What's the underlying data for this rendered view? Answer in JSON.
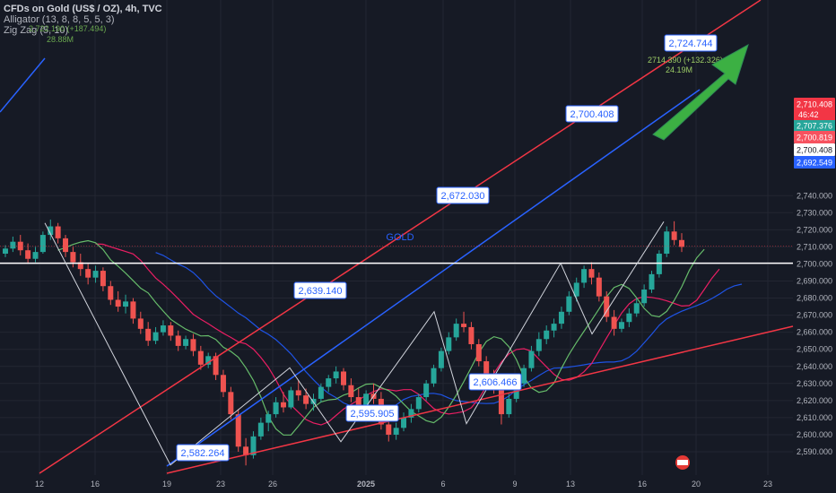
{
  "header": {
    "symbol_line": "CFDs on Gold (US$ / OZ), 4h, TVC",
    "indicator_1": "Alligator (13, 8, 8, 5, 5, 3)",
    "indicator_2": "Zig Zag (5, 10)",
    "faint_label_1": "2,722.190 (+187.494)",
    "faint_label_2": "28.88M"
  },
  "colors": {
    "background": "#161a25",
    "grid": "#232632",
    "up": "#26a69a",
    "down": "#ef5350",
    "channel_red": "#f23645",
    "channel_blue": "#2962ff",
    "zigzag": "#d1d4dc",
    "ma_blue": "#1e53e5",
    "ma_red": "#e91e63",
    "ma_green": "#66bb6a",
    "arrow": "#3cb043",
    "label_border": "#2962ff"
  },
  "chart_data": {
    "type": "candlestick",
    "ylim": [
      2581,
      2744
    ],
    "y_ticks": [
      2590,
      2600,
      2610,
      2620,
      2630,
      2640,
      2650,
      2660,
      2670,
      2680,
      2690,
      2700,
      2710,
      2720,
      2730,
      2740
    ],
    "y_tick_labels": [
      "2,590.000",
      "2,600.000",
      "2,610.000",
      "2,620.000",
      "2,630.000",
      "2,640.000",
      "2,650.000",
      "2,660.000",
      "2,670.000",
      "2,680.000",
      "2,690.000",
      "2,700.000",
      "2,710.000",
      "2,720.000",
      "2,730.000",
      "2,740.000"
    ],
    "x_ticks": [
      "12",
      "16",
      "19",
      "23",
      "26",
      "2025",
      "6",
      "9",
      "13",
      "16",
      "20",
      "23"
    ],
    "zigzag_labels": [
      {
        "label": "2,582.264",
        "value": 2582.264
      },
      {
        "label": "2,639.140",
        "value": 2639.14
      },
      {
        "label": "2,595.905",
        "value": 2595.905
      },
      {
        "label": "2,672.030",
        "value": 2672.03
      },
      {
        "label": "2,606.466",
        "value": 2606.466
      },
      {
        "label": "2,700.408",
        "value": 2700.408
      },
      {
        "label": "2,724.744",
        "value": 2724.744
      }
    ],
    "annotations": {
      "gold_text": "GOLD",
      "last_swing": "2714.390 (+132.326)",
      "last_volume": "24.19M",
      "countdown": "46:42"
    },
    "price_tags": [
      {
        "label": "2,710.408",
        "value": 2710.408,
        "color": "#f23645"
      },
      {
        "label": "2,707.376",
        "value": 2707.376,
        "color": "#26a69a"
      },
      {
        "label": "2,700.819",
        "value": 2700.819,
        "color": "#f7525f"
      },
      {
        "label": "2,700.408",
        "value": 2700.408,
        "color": "#ffffff"
      },
      {
        "label": "2,692.549",
        "value": 2692.549,
        "color": "#2962ff"
      }
    ],
    "horizontal_line": 2700.408,
    "candles": [
      [
        2706,
        2711,
        2704,
        2709
      ],
      [
        2709,
        2716,
        2707,
        2713
      ],
      [
        2713,
        2717,
        2705,
        2708
      ],
      [
        2708,
        2712,
        2700,
        2703
      ],
      [
        2703,
        2710,
        2701,
        2707
      ],
      [
        2707,
        2719,
        2706,
        2717
      ],
      [
        2717,
        2726,
        2714,
        2722
      ],
      [
        2722,
        2724,
        2712,
        2715
      ],
      [
        2715,
        2717,
        2704,
        2707
      ],
      [
        2707,
        2710,
        2698,
        2701
      ],
      [
        2701,
        2706,
        2693,
        2697
      ],
      [
        2697,
        2700,
        2688,
        2692
      ],
      [
        2692,
        2699,
        2689,
        2696
      ],
      [
        2696,
        2698,
        2684,
        2687
      ],
      [
        2687,
        2690,
        2676,
        2679
      ],
      [
        2679,
        2684,
        2672,
        2675
      ],
      [
        2675,
        2682,
        2671,
        2678
      ],
      [
        2678,
        2680,
        2665,
        2668
      ],
      [
        2668,
        2672,
        2659,
        2662
      ],
      [
        2662,
        2666,
        2652,
        2655
      ],
      [
        2655,
        2663,
        2653,
        2660
      ],
      [
        2660,
        2667,
        2658,
        2664
      ],
      [
        2664,
        2666,
        2655,
        2658
      ],
      [
        2658,
        2661,
        2649,
        2652
      ],
      [
        2652,
        2658,
        2650,
        2656
      ],
      [
        2656,
        2659,
        2646,
        2649
      ],
      [
        2649,
        2652,
        2638,
        2641
      ],
      [
        2641,
        2648,
        2639,
        2646
      ],
      [
        2646,
        2648,
        2632,
        2635
      ],
      [
        2635,
        2638,
        2622,
        2625
      ],
      [
        2625,
        2628,
        2609,
        2612
      ],
      [
        2612,
        2615,
        2590,
        2593
      ],
      [
        2593,
        2598,
        2582,
        2588
      ],
      [
        2588,
        2602,
        2586,
        2599
      ],
      [
        2599,
        2610,
        2597,
        2607
      ],
      [
        2607,
        2614,
        2602,
        2612
      ],
      [
        2612,
        2622,
        2610,
        2619
      ],
      [
        2619,
        2625,
        2613,
        2616
      ],
      [
        2616,
        2628,
        2615,
        2626
      ],
      [
        2626,
        2632,
        2620,
        2623
      ],
      [
        2623,
        2627,
        2615,
        2618
      ],
      [
        2618,
        2624,
        2614,
        2621
      ],
      [
        2621,
        2630,
        2619,
        2628
      ],
      [
        2628,
        2635,
        2625,
        2633
      ],
      [
        2633,
        2640,
        2630,
        2637
      ],
      [
        2637,
        2639,
        2626,
        2629
      ],
      [
        2629,
        2633,
        2619,
        2622
      ],
      [
        2622,
        2627,
        2614,
        2617
      ],
      [
        2617,
        2626,
        2615,
        2624
      ],
      [
        2624,
        2630,
        2618,
        2621
      ],
      [
        2621,
        2625,
        2603,
        2606
      ],
      [
        2606,
        2612,
        2596,
        2600
      ],
      [
        2600,
        2607,
        2597,
        2604
      ],
      [
        2604,
        2613,
        2602,
        2610
      ],
      [
        2610,
        2618,
        2607,
        2615
      ],
      [
        2615,
        2624,
        2613,
        2622
      ],
      [
        2622,
        2632,
        2620,
        2630
      ],
      [
        2630,
        2641,
        2628,
        2639
      ],
      [
        2639,
        2651,
        2637,
        2649
      ],
      [
        2649,
        2660,
        2647,
        2657
      ],
      [
        2657,
        2668,
        2655,
        2665
      ],
      [
        2665,
        2672,
        2660,
        2663
      ],
      [
        2663,
        2666,
        2650,
        2653
      ],
      [
        2653,
        2656,
        2640,
        2643
      ],
      [
        2643,
        2646,
        2630,
        2634
      ],
      [
        2634,
        2638,
        2624,
        2627
      ],
      [
        2627,
        2631,
        2606,
        2612
      ],
      [
        2612,
        2624,
        2610,
        2621
      ],
      [
        2621,
        2633,
        2619,
        2630
      ],
      [
        2630,
        2641,
        2628,
        2639
      ],
      [
        2639,
        2652,
        2637,
        2649
      ],
      [
        2649,
        2660,
        2646,
        2656
      ],
      [
        2656,
        2664,
        2653,
        2661
      ],
      [
        2661,
        2668,
        2657,
        2665
      ],
      [
        2665,
        2675,
        2662,
        2672
      ],
      [
        2672,
        2684,
        2670,
        2681
      ],
      [
        2681,
        2692,
        2678,
        2689
      ],
      [
        2689,
        2699,
        2686,
        2697
      ],
      [
        2697,
        2701,
        2688,
        2692
      ],
      [
        2692,
        2695,
        2678,
        2681
      ],
      [
        2681,
        2684,
        2666,
        2669
      ],
      [
        2669,
        2673,
        2658,
        2662
      ],
      [
        2662,
        2668,
        2660,
        2666
      ],
      [
        2666,
        2674,
        2663,
        2671
      ],
      [
        2671,
        2680,
        2669,
        2677
      ],
      [
        2677,
        2688,
        2675,
        2685
      ],
      [
        2685,
        2696,
        2683,
        2694
      ],
      [
        2694,
        2708,
        2692,
        2706
      ],
      [
        2706,
        2722,
        2704,
        2719
      ],
      [
        2719,
        2725,
        2711,
        2714
      ],
      [
        2714,
        2718,
        2707,
        2710
      ]
    ]
  }
}
